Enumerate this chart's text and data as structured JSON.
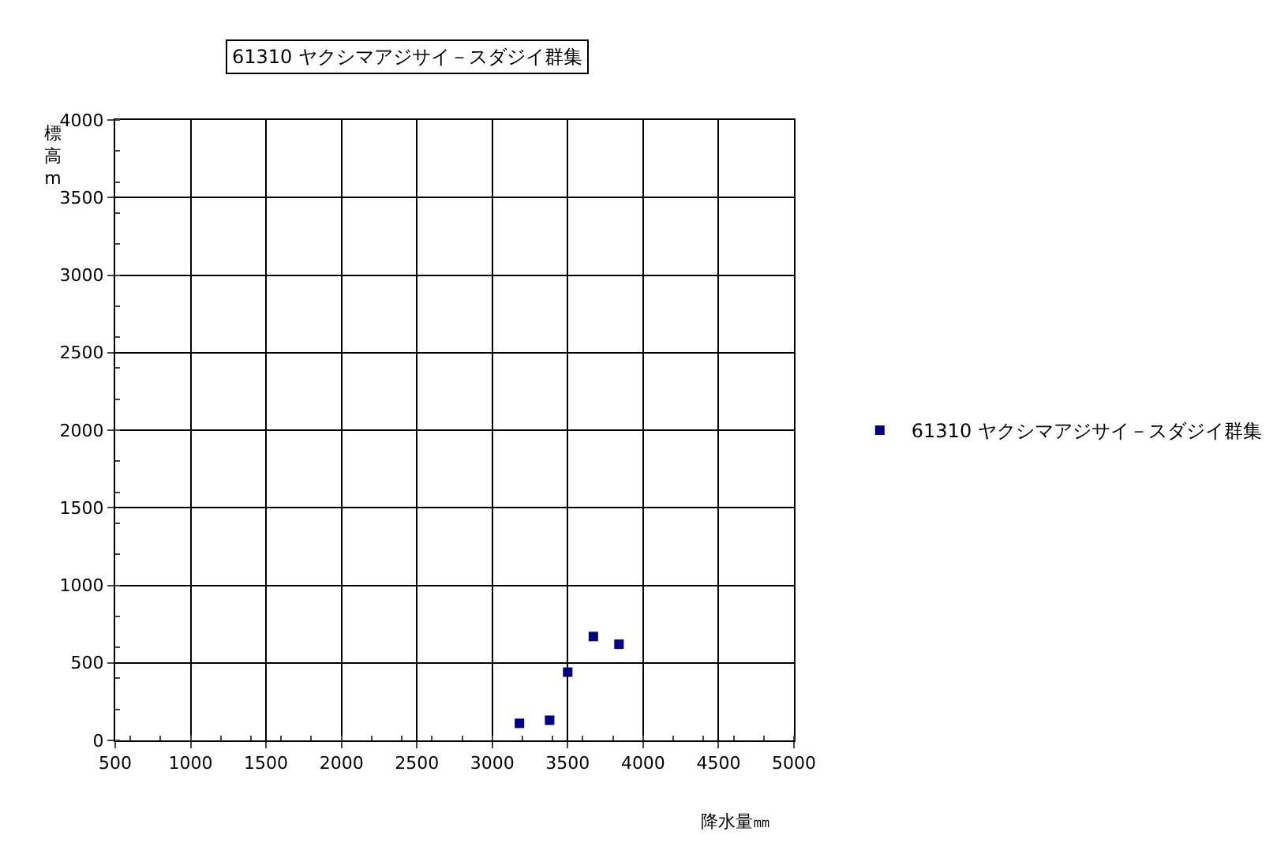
{
  "chart_data": {
    "type": "scatter",
    "title": "61310 ヤクシマアジサイ－スダジイ群集",
    "xlabel": "降水量㎜",
    "ylabel": "標高m",
    "x": [
      3180,
      3380,
      3500,
      3670,
      3840
    ],
    "series": [
      {
        "name": "61310 ヤクシマアジサイ－スダジイ群集",
        "color": "#000080",
        "values": [
          110,
          130,
          440,
          670,
          620
        ]
      }
    ],
    "xlim": [
      500,
      5000
    ],
    "xticks": [
      500,
      1000,
      1500,
      2000,
      2500,
      3000,
      3500,
      4000,
      4500,
      5000
    ],
    "ylim": [
      0,
      4000
    ],
    "yticks": [
      0,
      500,
      1000,
      1500,
      2000,
      2500,
      3000,
      3500,
      4000
    ],
    "grid": true,
    "legend": "right",
    "marker": "square"
  }
}
